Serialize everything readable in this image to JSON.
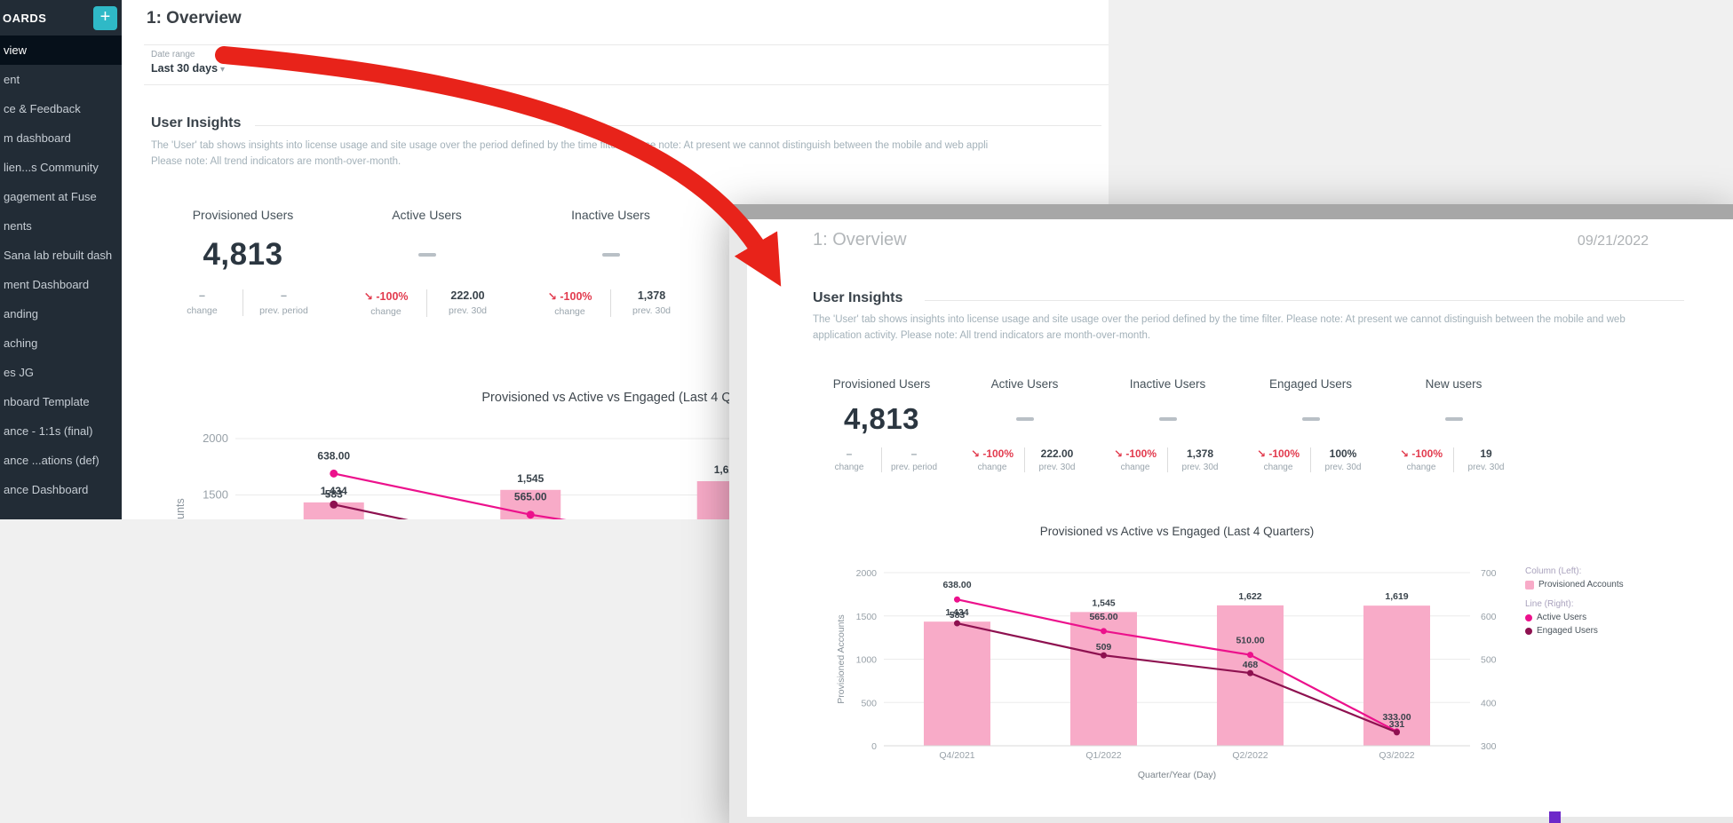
{
  "sidebar": {
    "header": "OARDS",
    "add_button_label": "+",
    "items": [
      {
        "label": "view",
        "active": true
      },
      {
        "label": "ent"
      },
      {
        "label": "ce & Feedback"
      },
      {
        "label": "m dashboard"
      },
      {
        "label": "lien...s Community"
      },
      {
        "label": "gagement at Fuse"
      },
      {
        "label": "nents"
      },
      {
        "label": "Sana lab rebuilt dash"
      },
      {
        "label": "ment Dashboard"
      },
      {
        "label": "anding"
      },
      {
        "label": "aching"
      },
      {
        "label": "es JG"
      },
      {
        "label": "nboard Template"
      },
      {
        "label": "ance - 1:1s (final)"
      },
      {
        "label": "ance ...ations (def)"
      },
      {
        "label": "ance Dashboard"
      }
    ]
  },
  "main": {
    "title": "1: Overview",
    "date_range": {
      "label": "Date range",
      "value": "Last 30 days"
    },
    "section": {
      "title": "User Insights",
      "description_line1": "The 'User' tab shows insights into license usage and site usage over the period defined by the time filter. Please note: At present we cannot distinguish between the mobile and web appli",
      "description_line2": "Please note: All trend indicators are month-over-month."
    },
    "kpis": [
      {
        "title": "Provisioned Users",
        "value": "4,813",
        "change": "–",
        "change_label": "change",
        "prev": "–",
        "prev_muted": true,
        "prev_label": "prev. period"
      },
      {
        "title": "Active Users",
        "dash": true,
        "change": "↘ -100%",
        "change_neg": true,
        "change_label": "change",
        "prev": "222.00",
        "prev_label": "prev. 30d"
      },
      {
        "title": "Inactive Users",
        "dash": true,
        "change": "↘ -100%",
        "change_neg": true,
        "change_label": "change",
        "prev": "1,378",
        "prev_label": "prev. 30d"
      },
      {
        "title": "Engaged Users",
        "dash": true,
        "change": "↘ -100%",
        "change_neg": true,
        "change_label": "change",
        "prev": "100%",
        "prev_label": "prev. 30d"
      }
    ]
  },
  "overlay": {
    "title": "1: Overview",
    "date": "09/21/2022",
    "section": {
      "title": "User Insights",
      "description_line1": "The 'User' tab shows insights into license usage and site usage over the period defined by the time filter. Please note: At present we cannot distinguish between the mobile and web",
      "description_line2": "application activity. Please note: All trend indicators are month-over-month."
    },
    "kpis": [
      {
        "title": "Provisioned Users",
        "value": "4,813",
        "change": "–",
        "change_label": "change",
        "prev": "–",
        "prev_muted": true,
        "prev_label": "prev. period"
      },
      {
        "title": "Active Users",
        "dash": true,
        "change": "↘ -100%",
        "change_neg": true,
        "change_label": "change",
        "prev": "222.00",
        "prev_label": "prev. 30d"
      },
      {
        "title": "Inactive Users",
        "dash": true,
        "change": "↘ -100%",
        "change_neg": true,
        "change_label": "change",
        "prev": "1,378",
        "prev_label": "prev. 30d"
      },
      {
        "title": "Engaged Users",
        "dash": true,
        "change": "↘ -100%",
        "change_neg": true,
        "change_label": "change",
        "prev": "100%",
        "prev_label": "prev. 30d"
      },
      {
        "title": "New users",
        "dash": true,
        "change": "↘ -100%",
        "change_neg": true,
        "change_label": "change",
        "prev": "19",
        "prev_label": "prev. 30d"
      }
    ]
  },
  "chart_data": {
    "type": "bar+line",
    "title": "Provisioned vs Active vs Engaged (Last 4 Quarters)",
    "categories": [
      "Q4/2021",
      "Q1/2022",
      "Q2/2022",
      "Q3/2022"
    ],
    "series": [
      {
        "name": "Provisioned Accounts",
        "type": "bar",
        "axis": "left",
        "color": "#f8abc8",
        "values": [
          1434,
          1545,
          1622,
          1619
        ],
        "labels": [
          "1,434",
          "1,545",
          "1,622",
          "1,619"
        ]
      },
      {
        "name": "Active Users",
        "type": "line",
        "axis": "right",
        "color": "#ec118c",
        "values": [
          638,
          565,
          510,
          333
        ],
        "labels": [
          "638.00",
          "565.00",
          "510.00",
          "333.00"
        ]
      },
      {
        "name": "Engaged Users",
        "type": "line",
        "axis": "right",
        "color": "#8e1150",
        "values": [
          583,
          509,
          468,
          331
        ],
        "labels": [
          "583",
          "509",
          "468",
          "331"
        ]
      }
    ],
    "left_axis": {
      "label": "Provisioned Accounts",
      "min": 0,
      "max": 2000,
      "ticks": [
        0,
        500,
        1000,
        1500,
        2000
      ]
    },
    "right_axis": {
      "min": 300,
      "max": 700,
      "ticks": [
        300,
        400,
        500,
        600,
        700
      ]
    },
    "x_axis_label": "Quarter/Year (Day)",
    "legend": {
      "column_header": "Column (Left):",
      "line_header": "Line (Right):"
    },
    "grid": true,
    "legend_position": "right"
  },
  "colors": {
    "bar_pink": "#f8abc8",
    "active_line": "#ec118c",
    "engaged_line": "#8e1150",
    "negative_red": "#e23b4e",
    "arrow_red": "#e8231a",
    "teal": "#2fb9c7",
    "sidebar_bg": "#222c36",
    "sidebar_active": "#06101a",
    "titlebar_gray": "#a7a7a7",
    "purple_marker": "#6d28c9"
  }
}
